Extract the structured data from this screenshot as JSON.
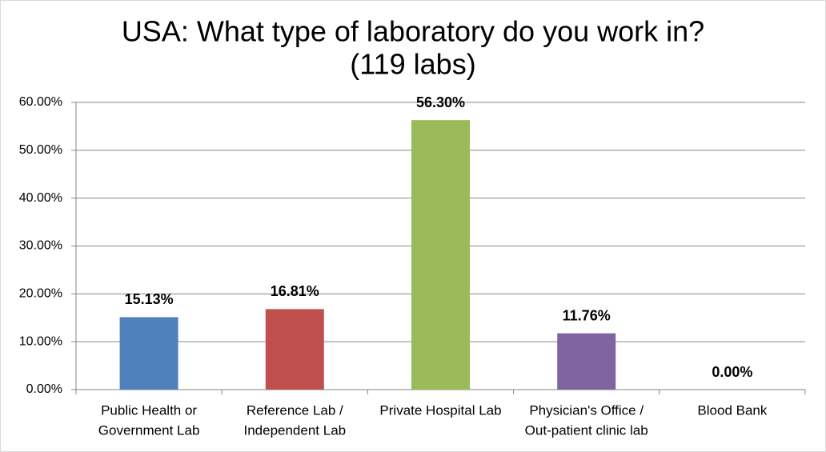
{
  "chart_data": {
    "type": "bar",
    "title": [
      "USA: What type of laboratory do you work in?",
      "(119 labs)"
    ],
    "categories": [
      [
        "Public Health or",
        "Government Lab"
      ],
      [
        "Reference Lab /",
        "Independent Lab"
      ],
      [
        "Private Hospital Lab"
      ],
      [
        "Physician's Office /",
        "Out-patient clinic lab"
      ],
      [
        "Blood Bank"
      ]
    ],
    "values": [
      15.13,
      16.81,
      56.3,
      11.76,
      0.0
    ],
    "value_labels": [
      "15.13%",
      "16.81%",
      "56.30%",
      "11.76%",
      "0.00%"
    ],
    "colors": [
      "#4f81bd",
      "#c0504d",
      "#9bbb59",
      "#8064a2",
      "#4bacc6"
    ],
    "ylim": [
      0,
      60
    ],
    "yticks": [
      {
        "value": 0,
        "label": "0.00%"
      },
      {
        "value": 10,
        "label": "10.00%"
      },
      {
        "value": 20,
        "label": "20.00%"
      },
      {
        "value": 30,
        "label": "30.00%"
      },
      {
        "value": 40,
        "label": "40.00%"
      },
      {
        "value": 50,
        "label": "50.00%"
      },
      {
        "value": 60,
        "label": "60.00%"
      }
    ],
    "grid": true
  }
}
